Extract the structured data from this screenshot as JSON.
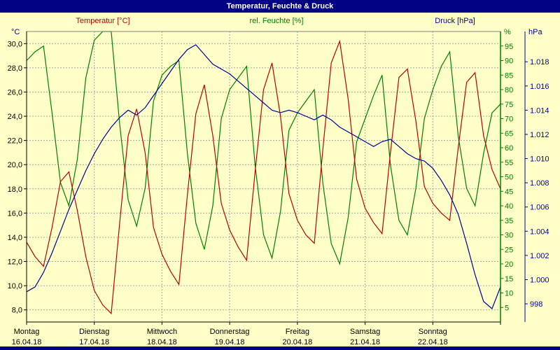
{
  "title": "Temperatur, Feuchte & Druck",
  "series_labels": {
    "temperature": "Temperatur [°C]",
    "humidity": "rel. Feuchte [%]",
    "pressure": "Druck [hPa]"
  },
  "axis_units": {
    "left": "°C",
    "inner_right": "%",
    "outer_right": "hPa"
  },
  "colors": {
    "background": "#ffffc8",
    "plot_bg": "#ffffc8",
    "titlebar": "#000082",
    "title_text": "#ffffff",
    "grid": "#a8a8a8",
    "border": "#808080",
    "temperature": "#c00000",
    "humidity": "#008000",
    "pressure": "#0000a0",
    "tick_text": "#000000"
  },
  "chart_data": {
    "type": "line",
    "title": "Temperatur, Feuchte & Druck",
    "grid": true,
    "legend_position": "top",
    "sample_interval_hours": 3,
    "total_hours": 168,
    "days": [
      {
        "weekday": "Montag",
        "date": "16.04.18"
      },
      {
        "weekday": "Dienstag",
        "date": "17.04.18"
      },
      {
        "weekday": "Mittwoch",
        "date": "18.04.18"
      },
      {
        "weekday": "Donnerstag",
        "date": "19.04.18"
      },
      {
        "weekday": "Freitag",
        "date": "20.04.18"
      },
      {
        "weekday": "Samstag",
        "date": "21.04.18"
      },
      {
        "weekday": "Sonntag",
        "date": "22.04.18"
      }
    ],
    "axes": {
      "temp": {
        "label": "°C",
        "range": [
          7,
          31
        ],
        "tick_values": [
          30,
          28,
          26,
          24,
          22,
          20,
          18,
          16,
          14,
          12,
          10,
          8
        ],
        "tick_labels": [
          "30,0",
          "28,0",
          "26,0",
          "24,0",
          "22,0",
          "20,0",
          "18,0",
          "16,0",
          "14,0",
          "12,0",
          "10,0",
          "8,0"
        ]
      },
      "humidity": {
        "label": "%",
        "range": [
          0,
          100
        ],
        "tick_values": [
          95,
          90,
          85,
          80,
          75,
          70,
          65,
          60,
          55,
          50,
          45,
          40,
          35,
          30,
          25,
          20,
          15,
          10,
          5
        ],
        "tick_labels": [
          "95",
          "90",
          "85",
          "80",
          "75",
          "70",
          "65",
          "60",
          "55",
          "50",
          "45",
          "40",
          "35",
          "30",
          "25",
          "20",
          "15",
          "10",
          "5"
        ]
      },
      "pressure": {
        "label": "hPa",
        "range": [
          996.5,
          1020.5
        ],
        "tick_values": [
          1018,
          1016,
          1014,
          1012,
          1010,
          1008,
          1006,
          1004,
          1002,
          1000,
          998
        ],
        "tick_labels": [
          "1.018",
          "1.016",
          "1.014",
          "1.012",
          "1.010",
          "1.008",
          "1.006",
          "1.004",
          "1.002",
          "1.000",
          "998"
        ]
      }
    },
    "series": [
      {
        "id": "humidity",
        "name": "rel. Feuchte [%]",
        "color": "#008000",
        "axis": "humidity",
        "values": [
          90,
          93,
          95,
          72,
          48,
          40,
          56,
          84,
          97,
          100,
          100,
          68,
          42,
          33,
          46,
          76,
          85,
          88,
          90,
          58,
          34,
          25,
          40,
          70,
          80,
          84,
          88,
          54,
          30,
          22,
          38,
          66,
          72,
          76,
          80,
          48,
          27,
          20,
          36,
          62,
          70,
          78,
          85,
          54,
          35,
          30,
          46,
          70,
          80,
          88,
          93,
          64,
          46,
          40,
          58,
          72,
          75
        ]
      },
      {
        "id": "temperature",
        "name": "Temperatur [°C]",
        "color": "#c00000",
        "axis": "temp",
        "values": [
          13.6,
          12.4,
          11.6,
          14.8,
          18.6,
          19.4,
          16.2,
          12.4,
          9.6,
          8.4,
          7.7,
          15.2,
          22.4,
          24.6,
          21.0,
          14.8,
          12.6,
          11.2,
          10.1,
          17.5,
          24.2,
          26.6,
          22.4,
          16.8,
          14.6,
          13.2,
          12.1,
          19.4,
          26.2,
          28.4,
          24.0,
          17.6,
          15.4,
          14.2,
          13.5,
          21.2,
          28.4,
          30.2,
          25.4,
          18.8,
          16.4,
          15.2,
          14.3,
          21.0,
          27.2,
          27.9,
          23.6,
          18.2,
          16.8,
          16.0,
          15.4,
          21.4,
          26.8,
          27.6,
          22.4,
          19.6,
          18.0
        ]
      },
      {
        "id": "pressure",
        "name": "Druck [hPa]",
        "color": "#0000a0",
        "axis": "pressure",
        "values": [
          999.0,
          999.4,
          1000.6,
          1002.2,
          1004.0,
          1005.8,
          1007.4,
          1009.0,
          1010.4,
          1011.6,
          1012.6,
          1013.4,
          1014.0,
          1013.6,
          1014.2,
          1015.2,
          1016.2,
          1017.2,
          1018.2,
          1019.0,
          1019.4,
          1018.6,
          1017.8,
          1017.4,
          1017.0,
          1016.4,
          1015.8,
          1015.2,
          1014.6,
          1014.0,
          1013.8,
          1014.0,
          1013.8,
          1013.5,
          1013.2,
          1013.6,
          1013.2,
          1012.6,
          1012.2,
          1011.8,
          1011.4,
          1011.0,
          1011.4,
          1011.6,
          1011.0,
          1010.4,
          1010.0,
          1009.8,
          1009.2,
          1008.2,
          1007.0,
          1005.4,
          1003.0,
          1000.4,
          998.2,
          997.6,
          999.4
        ]
      }
    ]
  }
}
